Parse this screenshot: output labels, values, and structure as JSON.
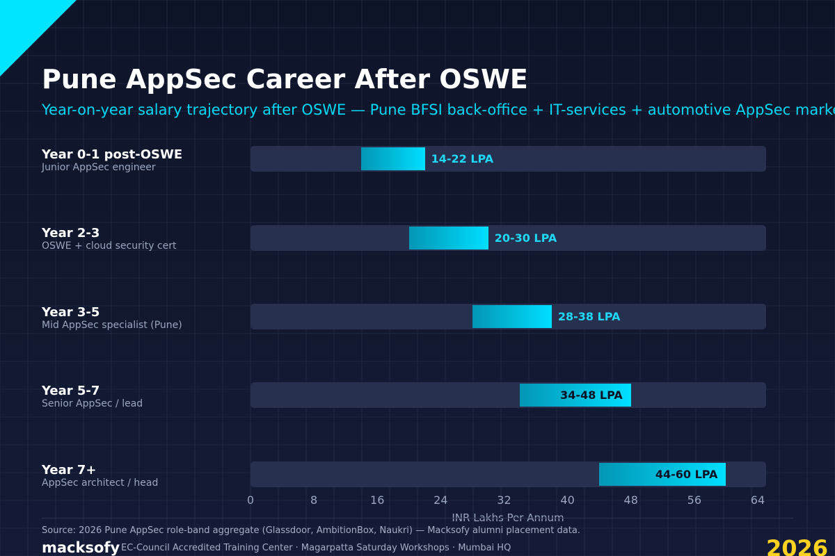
{
  "header": {
    "title": "Pune AppSec Career After OSWE",
    "subtitle": "Year-on-year salary trajectory after OSWE — Pune BFSI back-office + IT-services + automotive AppSec market"
  },
  "colors": {
    "accent": "#00e5ff",
    "bar_start": "#0396b5",
    "bar_end": "#00dfff",
    "track": "#27304f",
    "year_badge": "#ffd21f"
  },
  "chart_data": {
    "type": "bar",
    "orientation": "horizontal-range",
    "categories": [
      "Year 0-1 post-OSWE",
      "Year 2-3",
      "Year 3-5",
      "Year 5-7",
      "Year 7+"
    ],
    "subcategories": [
      "Junior AppSec engineer",
      "OSWE + cloud security cert",
      "Mid AppSec specialist (Pune)",
      "Senior AppSec / lead",
      "AppSec architect / head"
    ],
    "ranges": [
      [
        14,
        22
      ],
      [
        20,
        30
      ],
      [
        28,
        38
      ],
      [
        34,
        48
      ],
      [
        44,
        60
      ]
    ],
    "value_labels": [
      "14-22 LPA",
      "20-30 LPA",
      "28-38 LPA",
      "34-48 LPA",
      "44-60 LPA"
    ],
    "xlabel": "INR Lakhs Per Annum",
    "xlim": [
      0,
      65
    ],
    "xticks": [
      0,
      8,
      16,
      24,
      32,
      40,
      48,
      56,
      64
    ],
    "grid": true
  },
  "footer": {
    "source": "Source: 2026 Pune AppSec role-band aggregate (Glassdoor, AmbitionBox, Naukri) — Macksofy alumni placement data.",
    "brand": "macksofy",
    "tagline": "EC-Council Accredited Training Center · Magarpatta Saturday Workshops · Mumbai HQ",
    "year": "2026"
  }
}
